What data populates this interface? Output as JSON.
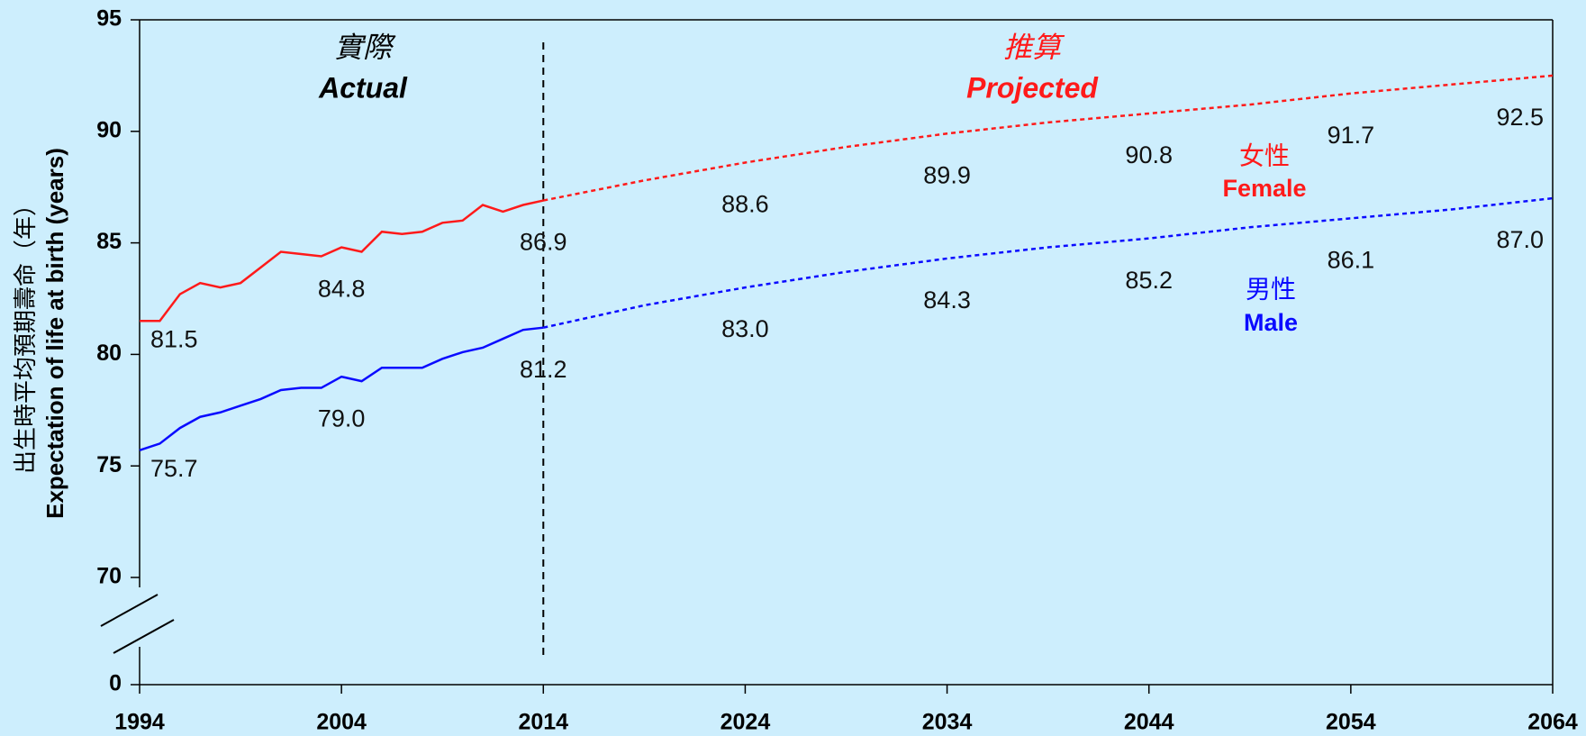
{
  "chart_data": {
    "type": "line",
    "y_axis_label": [
      "出生時平均預期壽命（年）",
      "Expectation of life at birth (years)"
    ],
    "annotations": {
      "actual_zh": "實際",
      "actual": "Actual",
      "projected_zh": "推算",
      "projected": "Projected",
      "female_zh": "女性",
      "female": "Female",
      "male_zh": "男性",
      "male": "Male"
    },
    "divider": 2014,
    "x": [
      1994,
      1995,
      1996,
      1997,
      1998,
      1999,
      2000,
      2001,
      2002,
      2003,
      2004,
      2005,
      2006,
      2007,
      2008,
      2009,
      2010,
      2011,
      2012,
      2013,
      2014,
      2019,
      2024,
      2029,
      2034,
      2039,
      2044,
      2049,
      2054,
      2059,
      2064
    ],
    "series": [
      {
        "name": "Female",
        "color": "#ff1a1a",
        "values": [
          81.5,
          81.5,
          82.7,
          83.2,
          83.0,
          83.2,
          83.9,
          84.6,
          84.5,
          84.4,
          84.8,
          84.6,
          85.5,
          85.4,
          85.5,
          85.9,
          86.0,
          86.7,
          86.4,
          86.7,
          86.9,
          87.8,
          88.6,
          89.3,
          89.9,
          90.4,
          90.8,
          91.2,
          91.7,
          92.1,
          92.5
        ],
        "value_labels": [
          "81.5",
          null,
          null,
          null,
          null,
          null,
          null,
          null,
          null,
          null,
          "84.8",
          null,
          null,
          null,
          null,
          null,
          null,
          null,
          null,
          null,
          "86.9",
          null,
          "88.6",
          null,
          "89.9",
          null,
          "90.8",
          null,
          "91.7",
          null,
          "92.5"
        ]
      },
      {
        "name": "Male",
        "color": "#0a0aff",
        "values": [
          75.7,
          76.0,
          76.7,
          77.2,
          77.4,
          77.7,
          78.0,
          78.4,
          78.5,
          78.5,
          79.0,
          78.8,
          79.4,
          79.4,
          79.4,
          79.8,
          80.1,
          80.3,
          80.7,
          81.1,
          81.2,
          82.2,
          83.0,
          83.7,
          84.3,
          84.8,
          85.2,
          85.7,
          86.1,
          86.5,
          87.0
        ],
        "value_labels": [
          "75.7",
          null,
          null,
          null,
          null,
          null,
          null,
          null,
          null,
          null,
          "79.0",
          null,
          null,
          null,
          null,
          null,
          null,
          null,
          null,
          null,
          "81.2",
          null,
          "83.0",
          null,
          "84.3",
          null,
          "85.2",
          null,
          "86.1",
          null,
          "87.0"
        ]
      }
    ],
    "xlim": [
      1994,
      2064
    ],
    "xticks": [
      1994,
      2004,
      2014,
      2024,
      2034,
      2044,
      2054,
      2064
    ],
    "ylim": [
      70,
      95
    ],
    "yticks": [
      0,
      70,
      75,
      80,
      85,
      90,
      95
    ],
    "axis_break": true,
    "grid": false
  }
}
